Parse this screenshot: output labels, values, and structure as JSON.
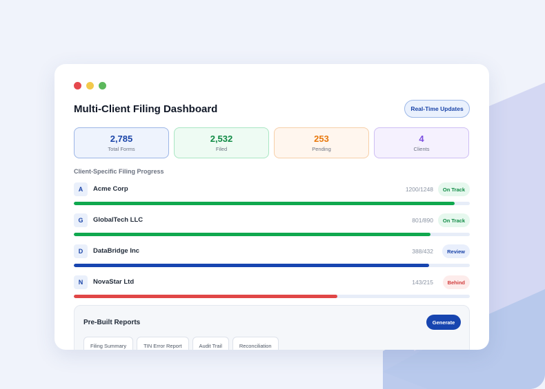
{
  "window": {
    "title": "Multi-Client Filing Dashboard",
    "realtime_label": "Real-Time Updates"
  },
  "colors": {
    "close_dot": "#e5484d",
    "minimize_dot": "#f2c94c",
    "maximize_dot": "#5cb85c",
    "green": "#0fa84e",
    "blue": "#1745b0",
    "red": "#e04646"
  },
  "stats": [
    {
      "value": "2,785",
      "label": "Total Forms",
      "color": "#1a44a8",
      "bg": "#eef3fd",
      "border": "#9bb5e6"
    },
    {
      "value": "2,532",
      "label": "Filed",
      "color": "#0f8a44",
      "bg": "#eefbf3",
      "border": "#a9e6c3"
    },
    {
      "value": "253",
      "label": "Pending",
      "color": "#e8780c",
      "bg": "#fff6ee",
      "border": "#f6cfa8"
    },
    {
      "value": "4",
      "label": "Clients",
      "color": "#7c4fe0",
      "bg": "#f5f1fe",
      "border": "#cdbdf3"
    }
  ],
  "progress_section": {
    "label": "Client-Specific Filing Progress"
  },
  "clients": [
    {
      "initial": "A",
      "name": "Acme Corp",
      "count": "1200/1248",
      "progress": 0.962,
      "status": "On Track",
      "bar_color": "#0fa84e",
      "badge_bg": "#e6f8ee",
      "badge_fg": "#0f8a44"
    },
    {
      "initial": "G",
      "name": "GlobalTech LLC",
      "count": "801/890",
      "progress": 0.9,
      "status": "On Track",
      "bar_color": "#0fa84e",
      "badge_bg": "#e6f8ee",
      "badge_fg": "#0f8a44"
    },
    {
      "initial": "D",
      "name": "DataBridge Inc",
      "count": "388/432",
      "progress": 0.898,
      "status": "Review",
      "bar_color": "#1745b0",
      "badge_bg": "#e9effc",
      "badge_fg": "#1a44a8"
    },
    {
      "initial": "N",
      "name": "NovaStar Ltd",
      "count": "143/215",
      "progress": 0.665,
      "status": "Behind",
      "bar_color": "#e04646",
      "badge_bg": "#fdeceb",
      "badge_fg": "#d03b3b"
    }
  ],
  "reports": {
    "title": "Pre-Built Reports",
    "generate_label": "Generate",
    "items": [
      "Filing Summary",
      "TIN Error Report",
      "Audit Trail",
      "Reconciliation"
    ]
  }
}
